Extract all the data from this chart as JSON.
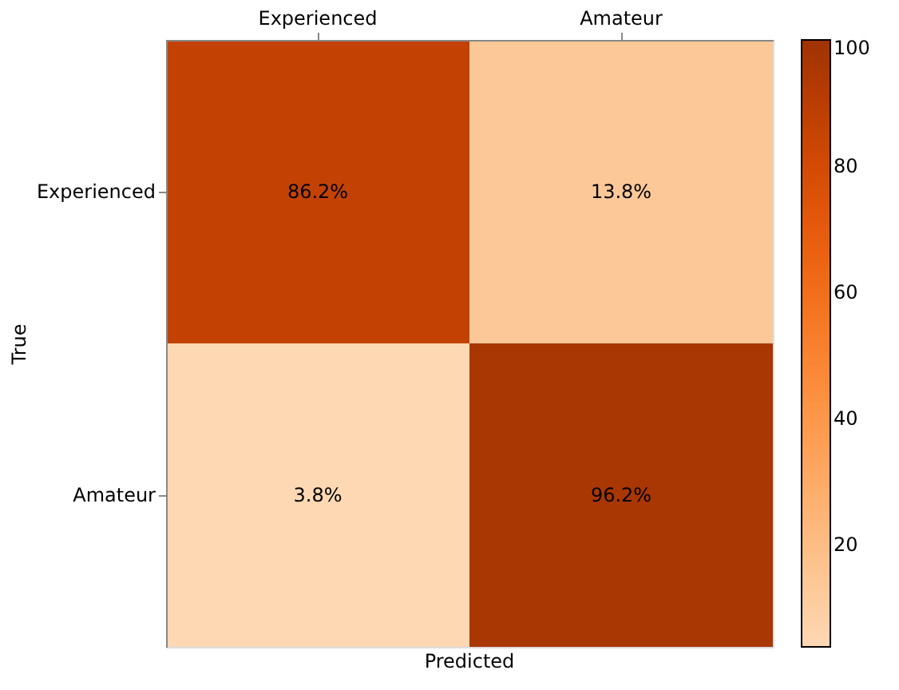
{
  "chart_data": {
    "type": "heatmap",
    "xlabel": "Predicted",
    "ylabel": "True",
    "categories": [
      "Experienced",
      "Amateur"
    ],
    "y_categories": [
      "Experienced",
      "Amateur"
    ],
    "cells": [
      [
        86.2,
        13.8
      ],
      [
        3.8,
        96.2
      ]
    ],
    "cell_labels": [
      [
        "86.2%",
        "13.8%"
      ],
      [
        "3.8%",
        "96.2%"
      ]
    ],
    "clim": [
      3.8,
      100
    ],
    "cticks": [
      20,
      40,
      60,
      80,
      100
    ]
  }
}
